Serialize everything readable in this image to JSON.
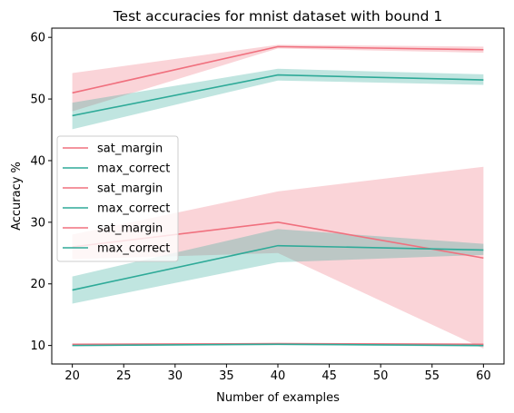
{
  "chart_data": {
    "type": "line",
    "title": "Test accuracies for mnist dataset with bound 1",
    "xlabel": "Number of examples",
    "ylabel": "Accuracy %",
    "xlim": [
      18,
      62
    ],
    "ylim": [
      7,
      61.5
    ],
    "xticks": [
      20,
      25,
      30,
      35,
      40,
      45,
      50,
      55,
      60
    ],
    "yticks": [
      10,
      20,
      30,
      40,
      50,
      60
    ],
    "x": [
      20,
      40,
      60
    ],
    "grid": false,
    "legend_position": "center-left",
    "series": [
      {
        "name": "sat_margin",
        "color": "#f0707e",
        "values": [
          51.0,
          58.5,
          58.0
        ],
        "lower": [
          48.0,
          58.2,
          57.5
        ],
        "upper": [
          54.2,
          58.8,
          58.5
        ]
      },
      {
        "name": "max_correct",
        "color": "#2eaa98",
        "values": [
          47.3,
          53.9,
          53.1
        ],
        "lower": [
          45.1,
          53.0,
          52.3
        ],
        "upper": [
          49.4,
          54.9,
          54.0
        ]
      },
      {
        "name": "sat_margin",
        "color": "#f0707e",
        "values": [
          26.0,
          30.0,
          24.2
        ],
        "lower": [
          24.0,
          25.0,
          9.5
        ],
        "upper": [
          28.0,
          35.0,
          39.0
        ]
      },
      {
        "name": "max_correct",
        "color": "#2eaa98",
        "values": [
          19.0,
          26.2,
          25.5
        ],
        "lower": [
          16.8,
          23.5,
          24.7
        ],
        "upper": [
          21.2,
          28.9,
          26.5
        ]
      },
      {
        "name": "sat_margin",
        "color": "#f0707e",
        "values": [
          10.2,
          10.3,
          10.2
        ],
        "lower": [
          10.1,
          10.2,
          10.1
        ],
        "upper": [
          10.3,
          10.4,
          10.3
        ]
      },
      {
        "name": "max_correct",
        "color": "#2eaa98",
        "values": [
          10.0,
          10.2,
          10.0
        ],
        "lower": [
          9.9,
          10.1,
          9.8
        ],
        "upper": [
          10.1,
          10.3,
          10.2
        ]
      }
    ]
  }
}
